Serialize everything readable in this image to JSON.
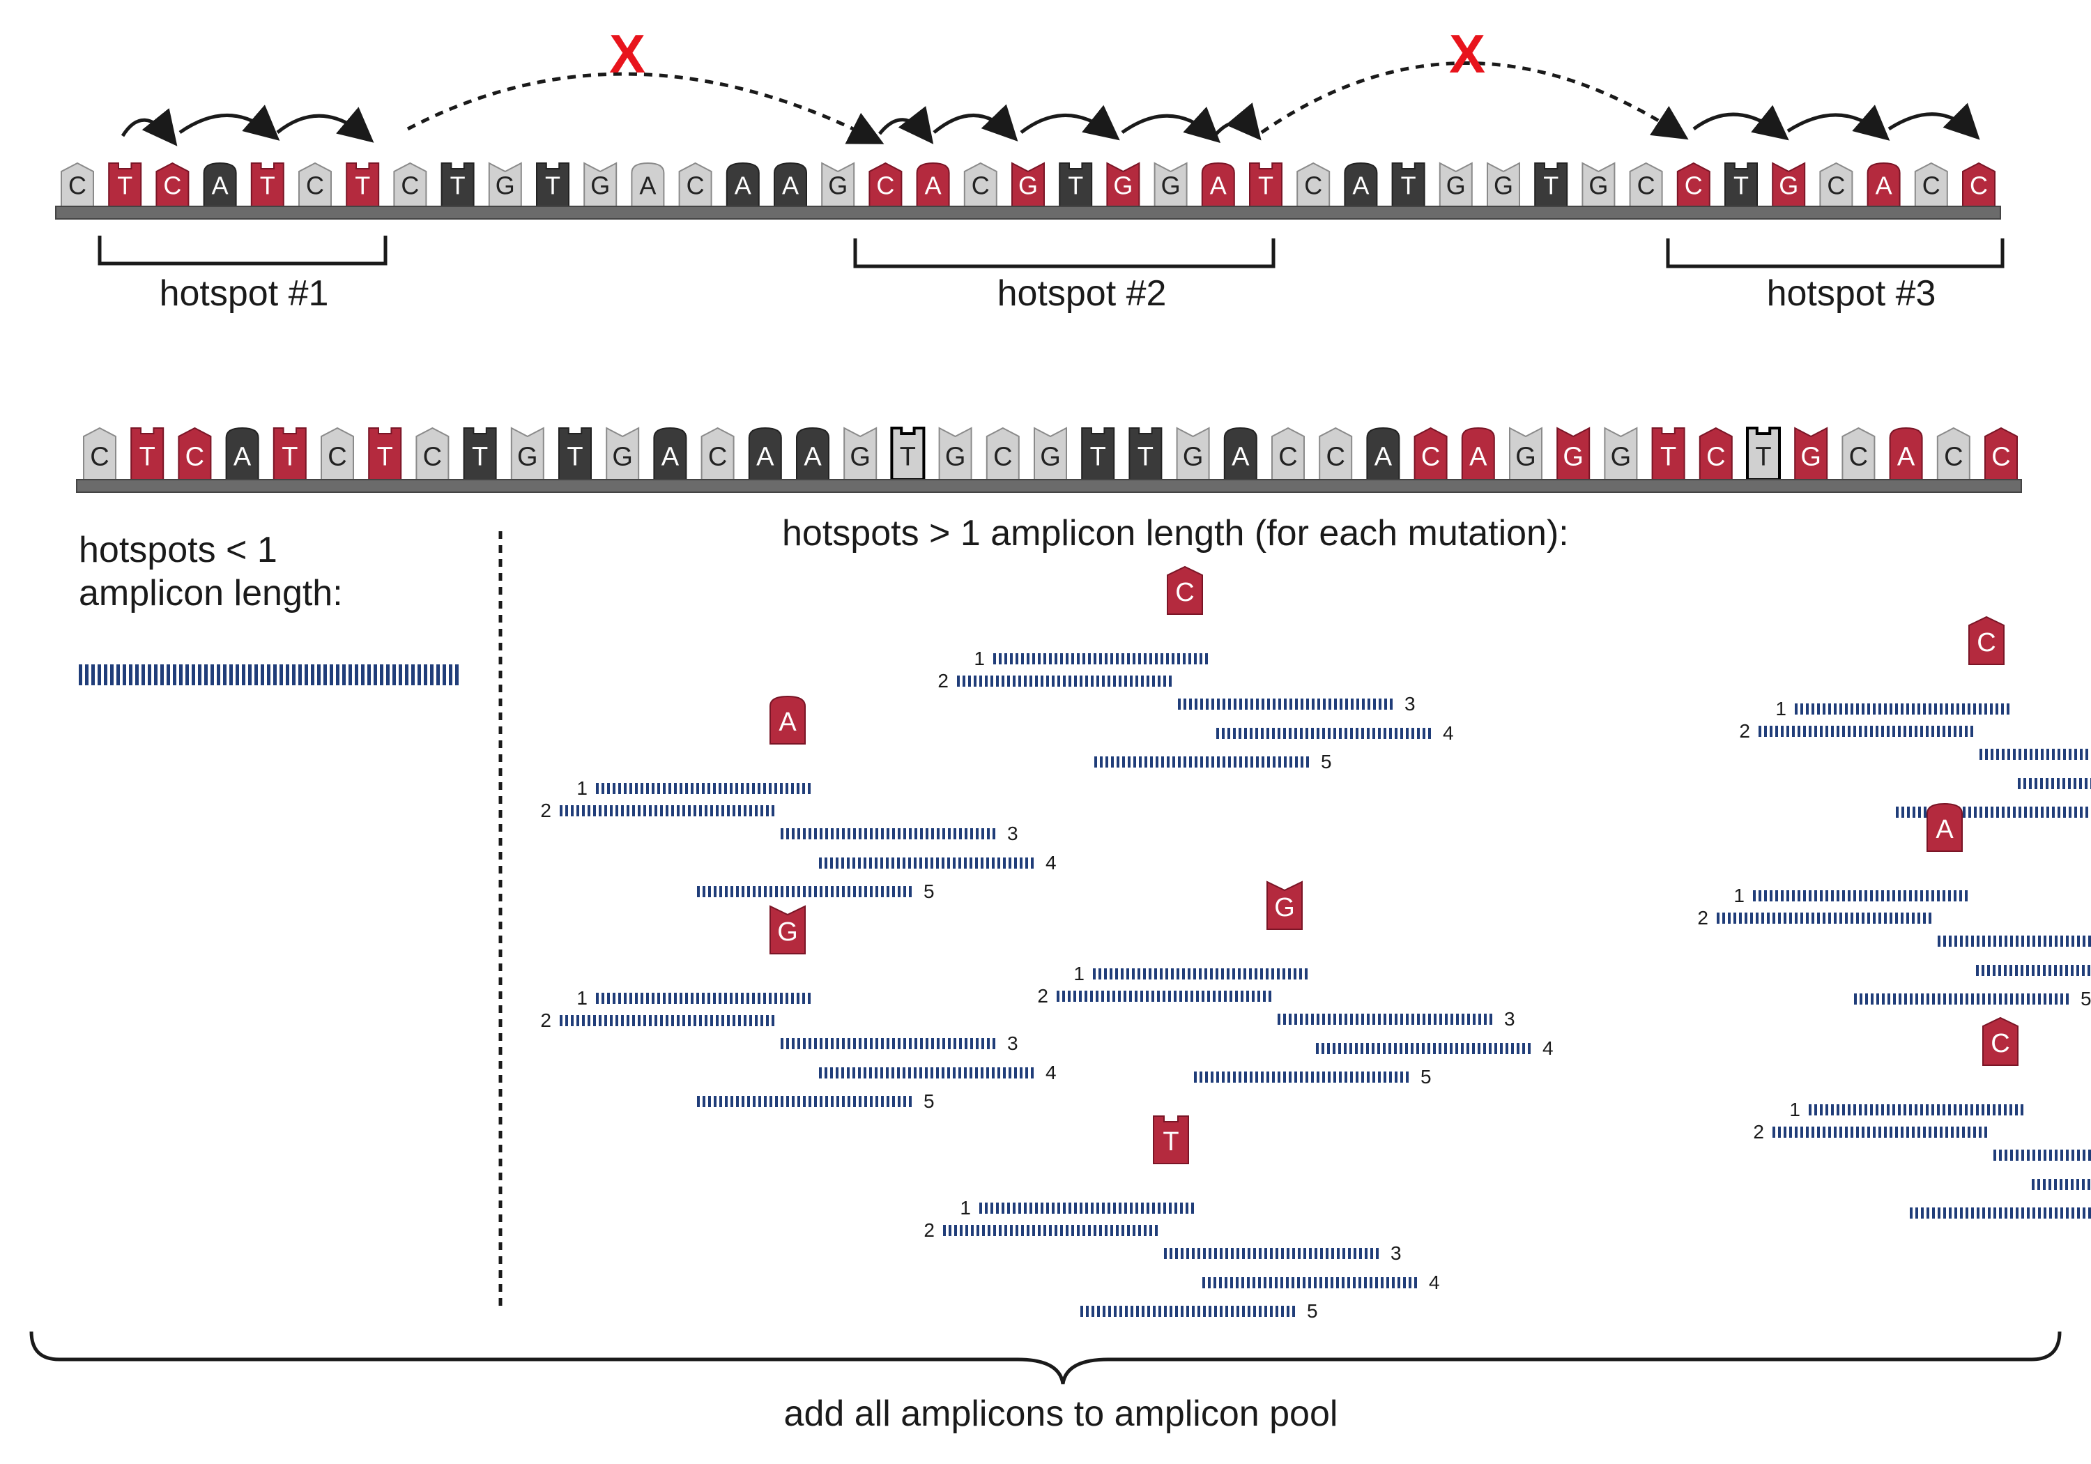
{
  "colors": {
    "light": "#d0d0d0",
    "dark": "#3a3a3a",
    "red": "#b42a3e",
    "primer": "#203d79",
    "x_mark": "#e8141c",
    "backbone": "#6b6b6b"
  },
  "top_strand": {
    "bases": [
      {
        "b": "C",
        "t": "light"
      },
      {
        "b": "T",
        "t": "red"
      },
      {
        "b": "C",
        "t": "red"
      },
      {
        "b": "A",
        "t": "dark"
      },
      {
        "b": "T",
        "t": "red"
      },
      {
        "b": "C",
        "t": "light"
      },
      {
        "b": "T",
        "t": "red"
      },
      {
        "b": "C",
        "t": "light"
      },
      {
        "b": "T",
        "t": "dark"
      },
      {
        "b": "G",
        "t": "light"
      },
      {
        "b": "T",
        "t": "dark"
      },
      {
        "b": "G",
        "t": "light"
      },
      {
        "b": "A",
        "t": "light"
      },
      {
        "b": "C",
        "t": "light"
      },
      {
        "b": "A",
        "t": "dark"
      },
      {
        "b": "A",
        "t": "dark"
      },
      {
        "b": "G",
        "t": "light"
      },
      {
        "b": "C",
        "t": "red"
      },
      {
        "b": "A",
        "t": "red"
      },
      {
        "b": "C",
        "t": "light"
      },
      {
        "b": "G",
        "t": "red"
      },
      {
        "b": "T",
        "t": "dark"
      },
      {
        "b": "G",
        "t": "red"
      },
      {
        "b": "G",
        "t": "light"
      },
      {
        "b": "A",
        "t": "red"
      },
      {
        "b": "T",
        "t": "red"
      },
      {
        "b": "C",
        "t": "light"
      },
      {
        "b": "A",
        "t": "dark"
      },
      {
        "b": "T",
        "t": "dark"
      },
      {
        "b": "G",
        "t": "light"
      },
      {
        "b": "G",
        "t": "light"
      },
      {
        "b": "T",
        "t": "dark"
      },
      {
        "b": "G",
        "t": "light"
      },
      {
        "b": "C",
        "t": "light"
      },
      {
        "b": "C",
        "t": "red"
      },
      {
        "b": "T",
        "t": "dark"
      },
      {
        "b": "G",
        "t": "red"
      },
      {
        "b": "C",
        "t": "light"
      },
      {
        "b": "A",
        "t": "red"
      },
      {
        "b": "C",
        "t": "light"
      },
      {
        "b": "C",
        "t": "red"
      }
    ],
    "hotspots": [
      "hotspot #1",
      "hotspot #2",
      "hotspot #3"
    ],
    "blocked_marker": "X"
  },
  "mutated_strand": {
    "bases": [
      {
        "b": "C",
        "t": "light"
      },
      {
        "b": "T",
        "t": "red"
      },
      {
        "b": "C",
        "t": "red"
      },
      {
        "b": "A",
        "t": "dark"
      },
      {
        "b": "T",
        "t": "red"
      },
      {
        "b": "C",
        "t": "light"
      },
      {
        "b": "T",
        "t": "red"
      },
      {
        "b": "C",
        "t": "light"
      },
      {
        "b": "T",
        "t": "dark"
      },
      {
        "b": "G",
        "t": "light"
      },
      {
        "b": "T",
        "t": "dark"
      },
      {
        "b": "G",
        "t": "light"
      },
      {
        "b": "A",
        "t": "dark"
      },
      {
        "b": "C",
        "t": "light"
      },
      {
        "b": "A",
        "t": "dark"
      },
      {
        "b": "A",
        "t": "dark"
      },
      {
        "b": "G",
        "t": "light"
      },
      {
        "b": "T",
        "t": "white"
      },
      {
        "b": "G",
        "t": "light"
      },
      {
        "b": "C",
        "t": "light"
      },
      {
        "b": "G",
        "t": "light"
      },
      {
        "b": "T",
        "t": "dark"
      },
      {
        "b": "T",
        "t": "dark"
      },
      {
        "b": "G",
        "t": "light"
      },
      {
        "b": "A",
        "t": "dark"
      },
      {
        "b": "C",
        "t": "light"
      },
      {
        "b": "C",
        "t": "light"
      },
      {
        "b": "A",
        "t": "dark"
      },
      {
        "b": "C",
        "t": "red"
      },
      {
        "b": "A",
        "t": "red"
      },
      {
        "b": "G",
        "t": "light"
      },
      {
        "b": "G",
        "t": "red"
      },
      {
        "b": "G",
        "t": "light"
      },
      {
        "b": "T",
        "t": "red"
      },
      {
        "b": "C",
        "t": "red"
      },
      {
        "b": "T",
        "t": "white"
      },
      {
        "b": "G",
        "t": "red"
      },
      {
        "b": "C",
        "t": "light"
      },
      {
        "b": "A",
        "t": "red"
      },
      {
        "b": "C",
        "t": "light"
      },
      {
        "b": "C",
        "t": "red"
      }
    ]
  },
  "left_panel": {
    "title_line1": "hotspots < 1",
    "title_line2": "amplicon length:"
  },
  "right_panel": {
    "title": "hotspots > 1 amplicon length (for each mutation):",
    "primer_numbers": [
      "1",
      "2",
      "3",
      "4",
      "5"
    ],
    "groups": [
      {
        "base": "C"
      },
      {
        "base": "C"
      },
      {
        "base": "A"
      },
      {
        "base": "A"
      },
      {
        "base": "G"
      },
      {
        "base": "G"
      },
      {
        "base": "C"
      },
      {
        "base": "T"
      }
    ]
  },
  "footer": "add all amplicons to amplicon pool"
}
